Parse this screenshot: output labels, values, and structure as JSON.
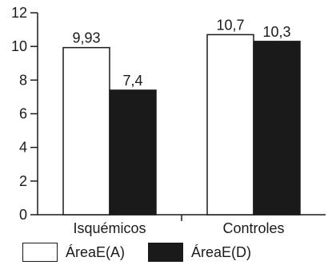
{
  "chart_data": {
    "type": "bar",
    "categories": [
      "Isquémicos",
      "Controles"
    ],
    "series": [
      {
        "name": "ÁreaE(A)",
        "values": [
          9.93,
          10.7
        ],
        "labels": [
          "9,93",
          "10,7"
        ],
        "color": "#ffffff"
      },
      {
        "name": "ÁreaE(D)",
        "values": [
          7.4,
          10.3
        ],
        "labels": [
          "7,4",
          "10,3"
        ],
        "color": "#1a1a1a"
      }
    ],
    "yticks": [
      "0",
      "2",
      "4",
      "6",
      "8",
      "10",
      "12"
    ],
    "ylim": [
      0,
      12
    ],
    "grid": false,
    "legend_position": "bottom"
  }
}
